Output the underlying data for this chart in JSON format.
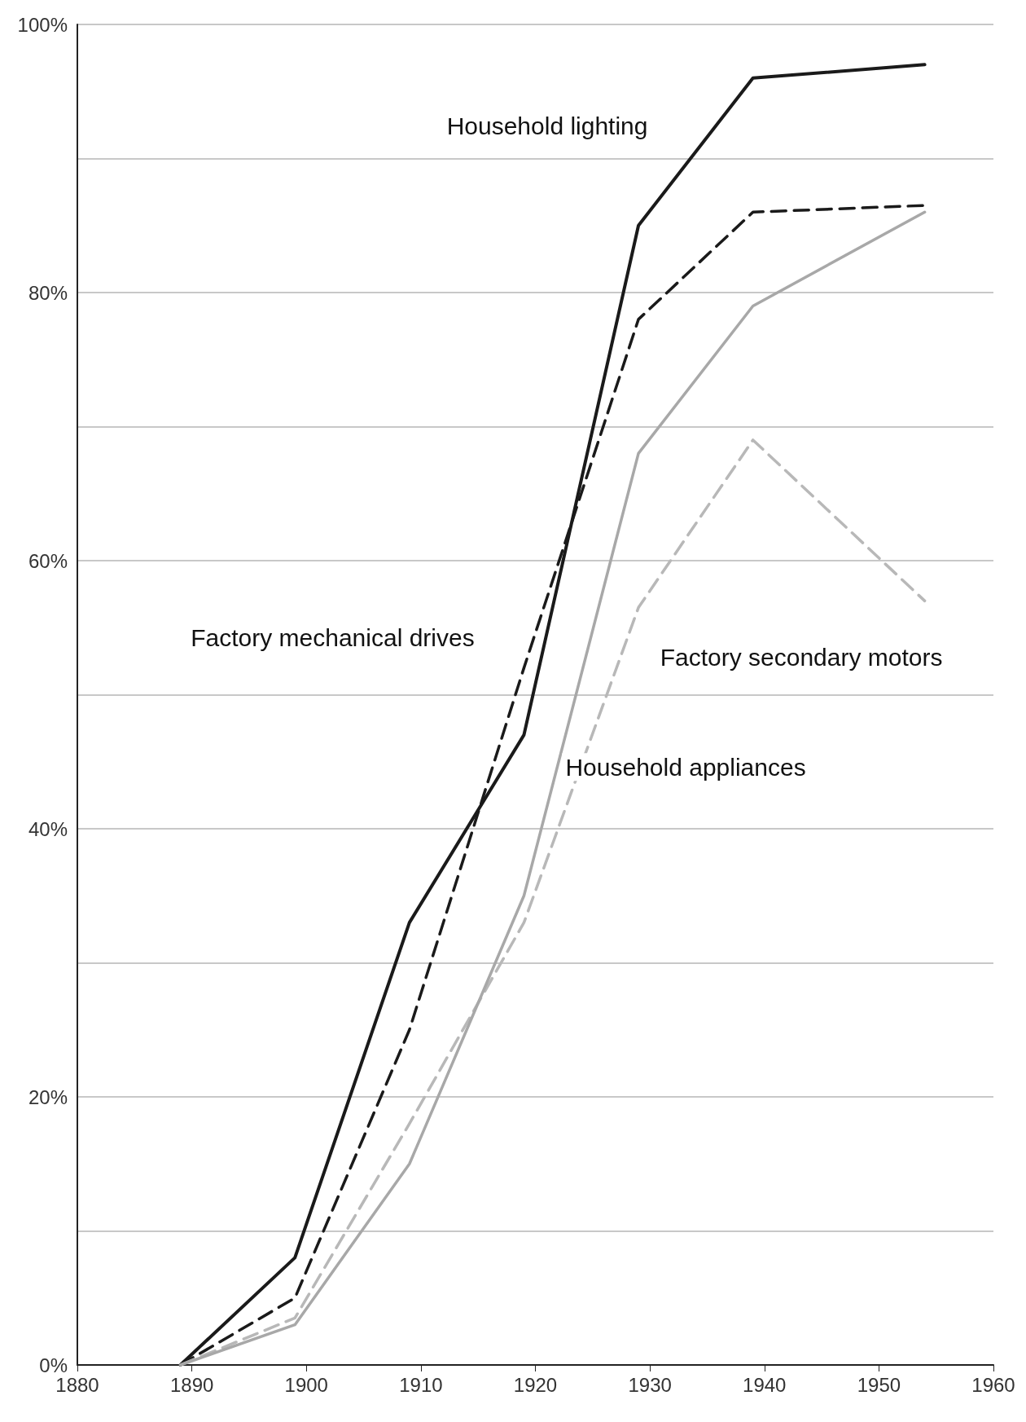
{
  "chart_data": {
    "type": "line",
    "xlim": [
      1880,
      1960
    ],
    "xticks": [
      1880,
      1890,
      1900,
      1910,
      1920,
      1930,
      1940,
      1950,
      1960
    ],
    "ylim": [
      0,
      100
    ],
    "yticks": [
      {
        "value": 0,
        "label": "0%"
      },
      {
        "value": 10,
        "label": null
      },
      {
        "value": 20,
        "label": "20%"
      },
      {
        "value": 30,
        "label": null
      },
      {
        "value": 40,
        "label": "40%"
      },
      {
        "value": 50,
        "label": null
      },
      {
        "value": 60,
        "label": "60%"
      },
      {
        "value": 70,
        "label": null
      },
      {
        "value": 80,
        "label": "80%"
      },
      {
        "value": 90,
        "label": null
      },
      {
        "value": 100,
        "label": "100%"
      }
    ],
    "grid": "y",
    "legend": false,
    "marker": "none",
    "x": [
      1889,
      1899,
      1909,
      1919,
      1929,
      1939,
      1954
    ],
    "series": [
      {
        "name": "Household lighting",
        "color": "#1a1a1a",
        "line_style": "solid",
        "values": [
          0,
          8,
          33,
          47,
          85,
          96,
          97
        ]
      },
      {
        "name": "Factory mechanical drives",
        "color": "#1a1a1a",
        "line_style": "dashed",
        "values": [
          0,
          5,
          25,
          52,
          78,
          86,
          86.5
        ]
      },
      {
        "name": "Factory secondary motors",
        "color": "#b8b8b8",
        "line_style": "dashed",
        "values": [
          0,
          3.5,
          18,
          33,
          56.5,
          69,
          57
        ]
      },
      {
        "name": "Household appliances",
        "color": "#a8a8a8",
        "line_style": "solid",
        "values": [
          0,
          3,
          15,
          35,
          68,
          79,
          86
        ]
      }
    ]
  }
}
